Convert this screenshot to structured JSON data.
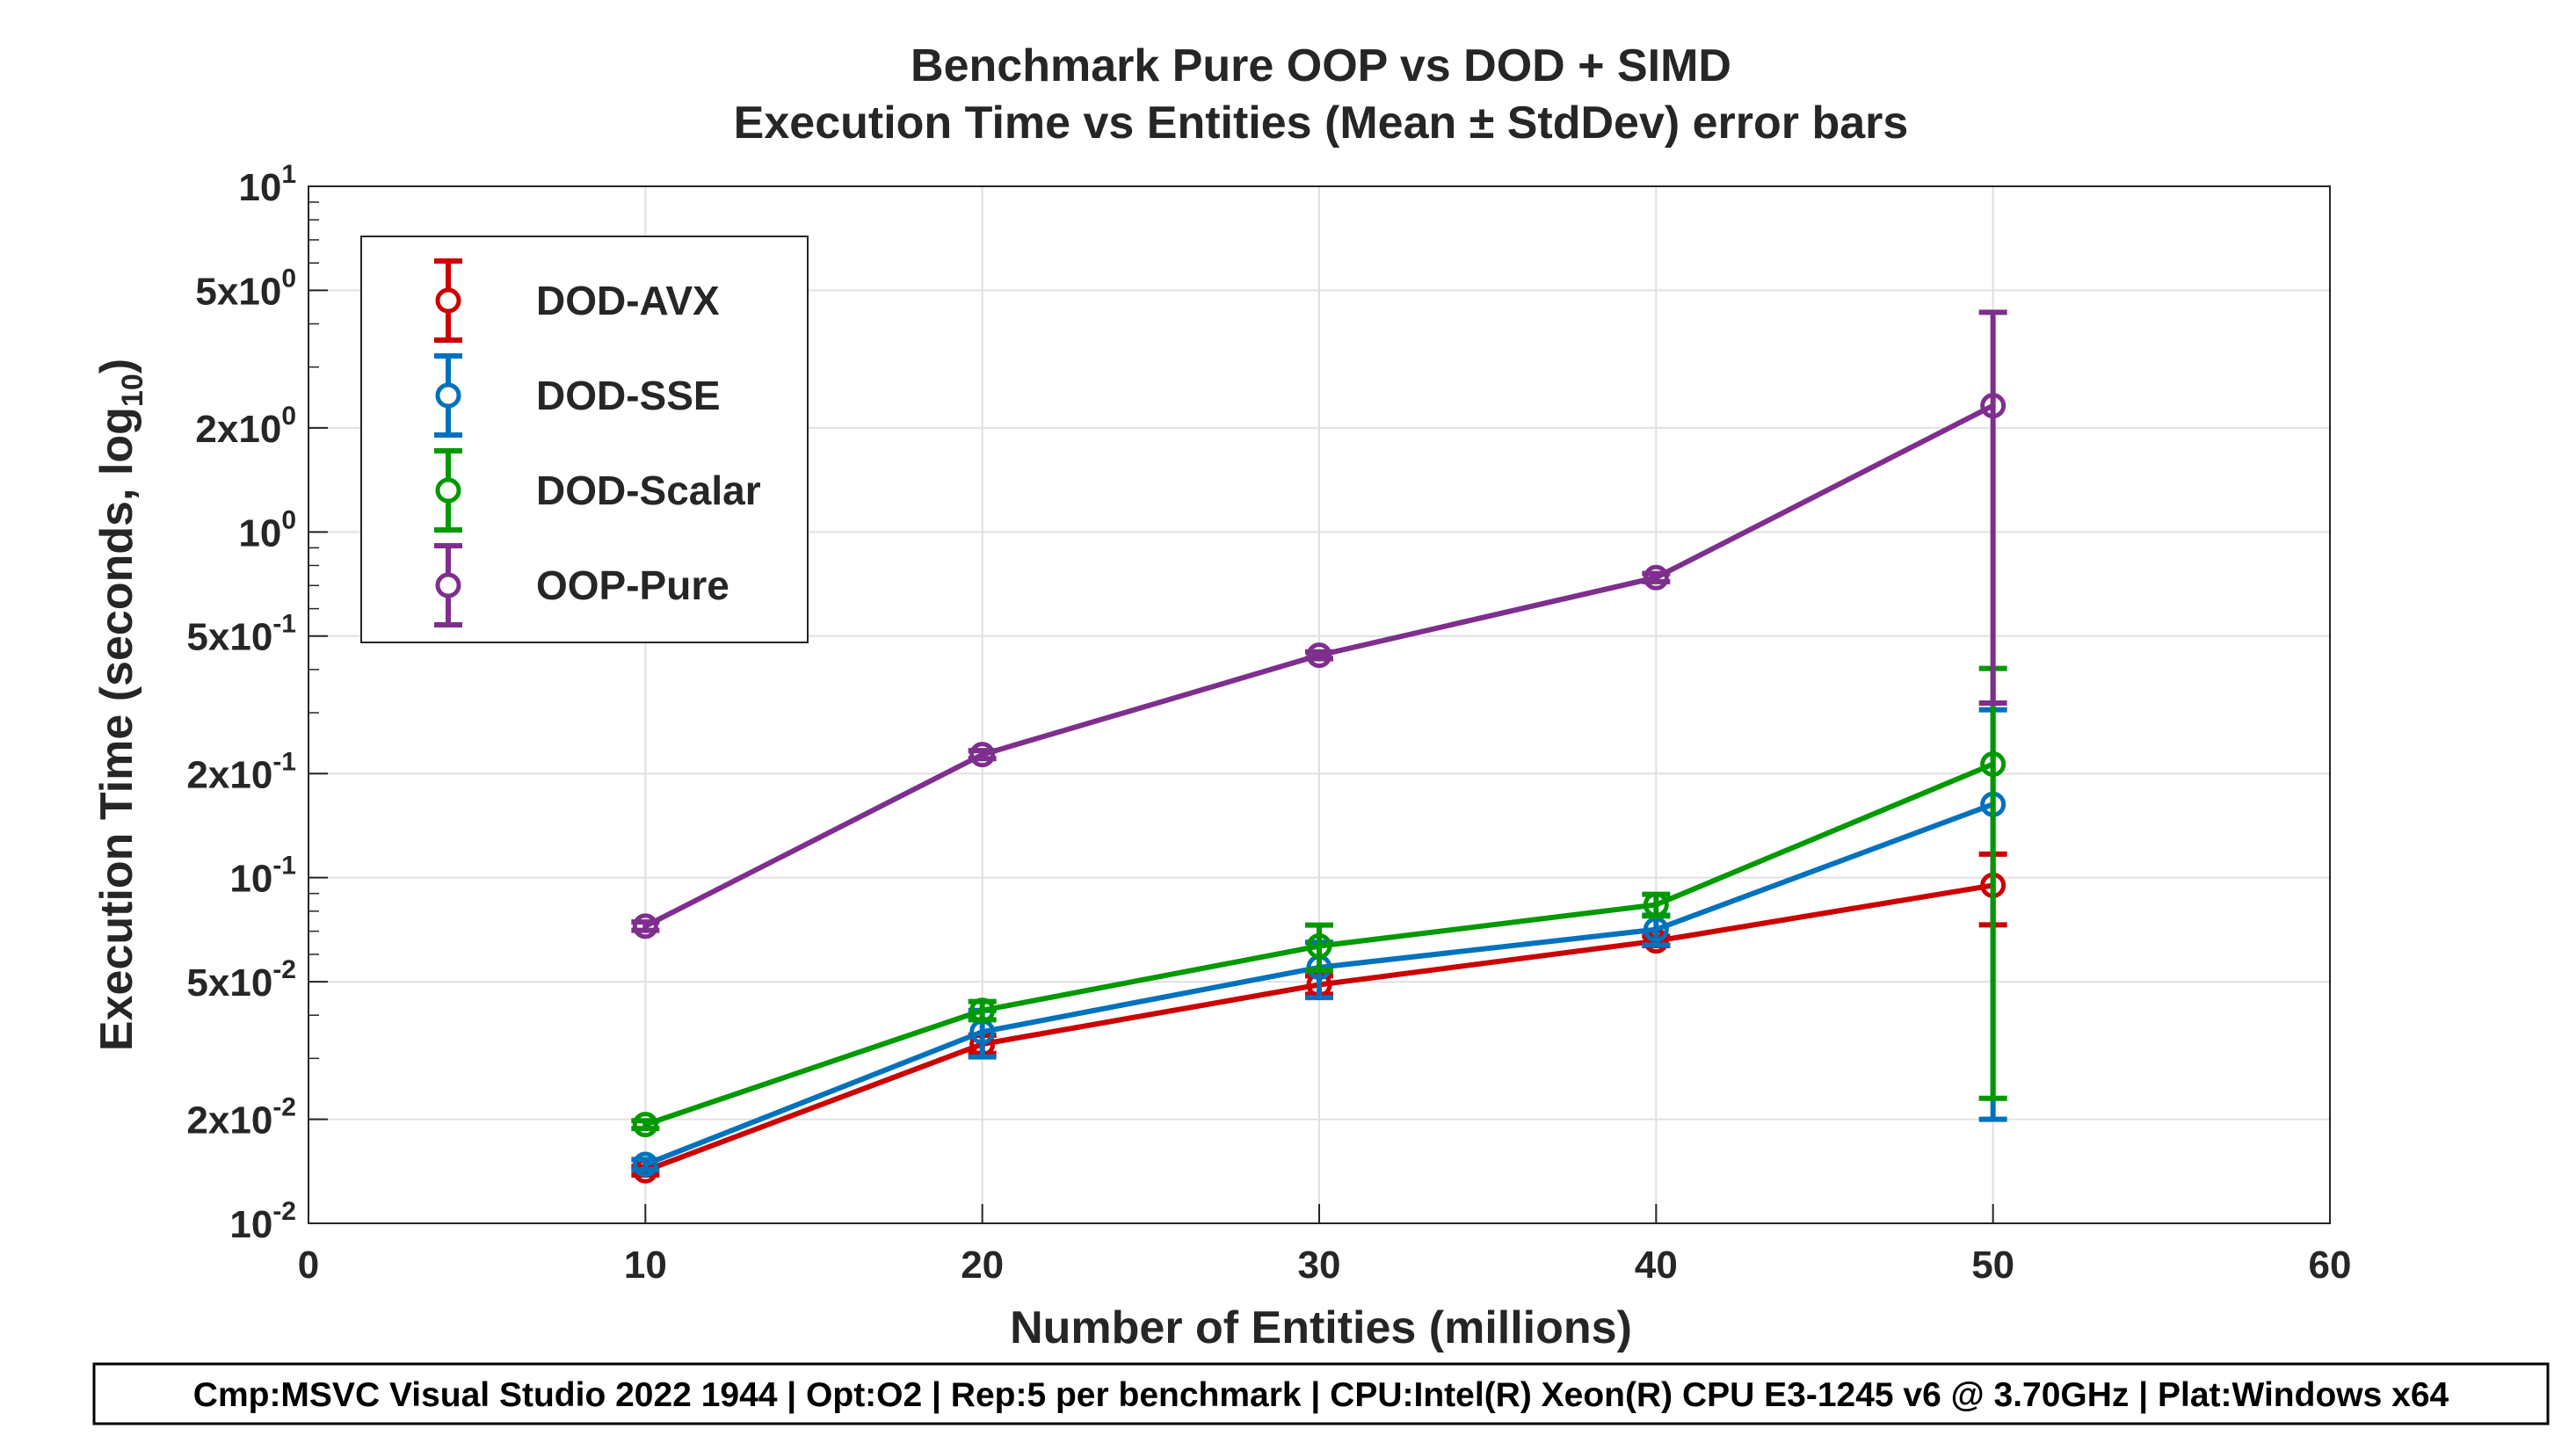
{
  "chart_data": {
    "type": "line",
    "title": "Benchmark Pure OOP vs DOD + SIMD",
    "subtitle": "Execution Time vs Entities (Mean ± StdDev) error bars",
    "xlabel": "Number of Entities (millions)",
    "ylabel": "Execution Time (seconds, log",
    "ylabel_sub": "10",
    "ylabel_close": ")",
    "xlim": [
      0,
      60
    ],
    "ylim": [
      0.01,
      10
    ],
    "yscale": "log",
    "grid": true,
    "legend_position": "top-left",
    "xticks": [
      0,
      10,
      20,
      30,
      40,
      50,
      60
    ],
    "yticks": [
      {
        "value": 0.01,
        "base": "10",
        "exp": "-2"
      },
      {
        "value": 0.02,
        "base": "2x10",
        "exp": "-2"
      },
      {
        "value": 0.05,
        "base": "5x10",
        "exp": "-2"
      },
      {
        "value": 0.1,
        "base": "10",
        "exp": "-1"
      },
      {
        "value": 0.2,
        "base": "2x10",
        "exp": "-1"
      },
      {
        "value": 0.5,
        "base": "5x10",
        "exp": "-1"
      },
      {
        "value": 1,
        "base": "10",
        "exp": "0"
      },
      {
        "value": 2,
        "base": "2x10",
        "exp": "0"
      },
      {
        "value": 5,
        "base": "5x10",
        "exp": "0"
      },
      {
        "value": 10,
        "base": "10",
        "exp": "1"
      }
    ],
    "x": [
      10,
      20,
      30,
      40,
      50
    ],
    "series": [
      {
        "name": "DOD-AVX",
        "color": "#cc0000",
        "values": [
          0.0142,
          0.033,
          0.049,
          0.0656,
          0.095
        ],
        "std": [
          0.0004,
          0.002,
          0.003,
          0.002,
          0.022
        ]
      },
      {
        "name": "DOD-SSE",
        "color": "#0072bd",
        "values": [
          0.0148,
          0.0358,
          0.055,
          0.0708,
          0.163
        ],
        "std": [
          0.0005,
          0.0055,
          0.01,
          0.007,
          0.143
        ]
      },
      {
        "name": "DOD-Scalar",
        "color": "#009900",
        "values": [
          0.0193,
          0.0413,
          0.0634,
          0.0835,
          0.213
        ],
        "std": [
          0.0005,
          0.0025,
          0.0095,
          0.006,
          0.19
        ]
      },
      {
        "name": "OOP-Pure",
        "color": "#7e2f8e",
        "values": [
          0.0724,
          0.227,
          0.44,
          0.738,
          2.32
        ],
        "std": [
          0.002,
          0.006,
          0.01,
          0.02,
          2.0
        ]
      }
    ]
  },
  "footer": "Cmp:MSVC Visual Studio 2022 1944 | Opt:O2 | Rep:5 per benchmark | CPU:Intel(R) Xeon(R) CPU E3-1245 v6 @ 3.70GHz | Plat:Windows x64"
}
